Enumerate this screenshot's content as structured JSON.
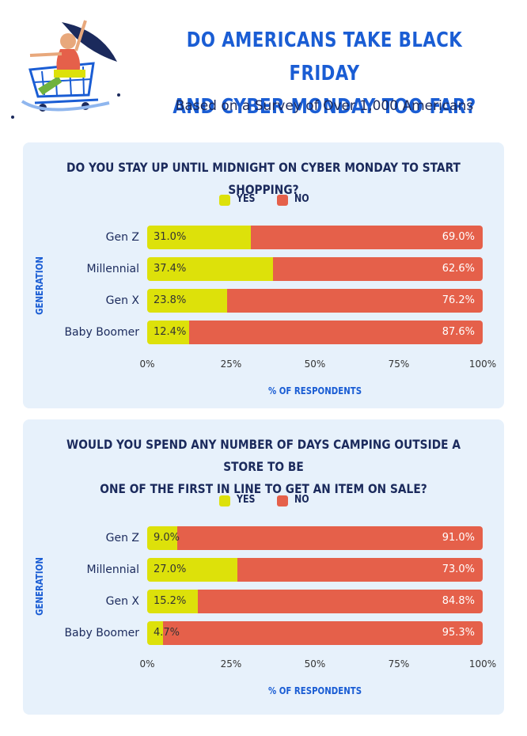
{
  "header": {
    "title_line1": "DO AMERICANS TAKE BLACK FRIDAY",
    "title_line2": "AND CYBER MONDAY TOO FAR?",
    "subtitle": "Based on a Survey of Over 1,000 Americans"
  },
  "colors": {
    "yes": "#dde10a",
    "no": "#e5604a",
    "accent": "#1a5dd4",
    "panel": "#e7f1fb"
  },
  "chart_data": [
    {
      "type": "bar",
      "orientation": "horizontal-stacked",
      "title": "DO YOU STAY UP UNTIL MIDNIGHT ON CYBER MONDAY TO START SHOPPING?",
      "ylabel": "GENERATION",
      "xlabel": "% OF RESPONDENTS",
      "categories": [
        "Gen Z",
        "Millennial",
        "Gen X",
        "Baby Boomer"
      ],
      "series": [
        {
          "name": "YES",
          "values": [
            31.0,
            37.4,
            23.8,
            12.4
          ],
          "labels": [
            "31.0%",
            "37.4%",
            "23.8%",
            "12.4%"
          ]
        },
        {
          "name": "NO",
          "values": [
            69.0,
            62.6,
            76.2,
            87.6
          ],
          "labels": [
            "69.0%",
            "62.6%",
            "76.2%",
            "87.6%"
          ]
        }
      ],
      "xticks": [
        "0%",
        "25%",
        "50%",
        "75%",
        "100%"
      ],
      "xlim": [
        0,
        100
      ]
    },
    {
      "type": "bar",
      "orientation": "horizontal-stacked",
      "title_line1": "WOULD YOU SPEND ANY NUMBER OF DAYS CAMPING OUTSIDE A STORE TO BE",
      "title_line2": "ONE OF THE FIRST IN LINE TO GET AN ITEM ON SALE?",
      "ylabel": "GENERATION",
      "xlabel": "% OF RESPONDENTS",
      "categories": [
        "Gen Z",
        "Millennial",
        "Gen X",
        "Baby Boomer"
      ],
      "series": [
        {
          "name": "YES",
          "values": [
            9.0,
            27.0,
            15.2,
            4.7
          ],
          "labels": [
            "9.0%",
            "27.0%",
            "15.2%",
            "4.7%"
          ]
        },
        {
          "name": "NO",
          "values": [
            91.0,
            73.0,
            84.8,
            95.3
          ],
          "labels": [
            "91.0%",
            "73.0%",
            "84.8%",
            "95.3%"
          ]
        }
      ],
      "xticks": [
        "0%",
        "25%",
        "50%",
        "75%",
        "100%"
      ],
      "xlim": [
        0,
        100
      ]
    }
  ]
}
